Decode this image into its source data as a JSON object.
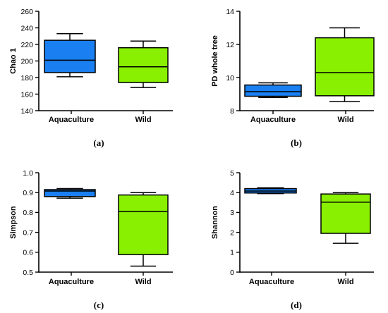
{
  "chart_data": [
    {
      "type": "box",
      "panel_label": "(a)",
      "ylabel": "Chao 1",
      "ylim": [
        140,
        260
      ],
      "yticks": [
        "140",
        "160",
        "180",
        "200",
        "220",
        "240",
        "260"
      ],
      "categories": [
        "Aquaculture",
        "Wild"
      ],
      "boxes": [
        {
          "category": "Aquaculture",
          "min": 181,
          "q1": 186,
          "median": 201,
          "q3": 225,
          "max": 233,
          "color": "#1a7ff0"
        },
        {
          "category": "Wild",
          "min": 168,
          "q1": 174,
          "median": 193,
          "q3": 216,
          "max": 224,
          "color": "#88f000"
        }
      ]
    },
    {
      "type": "box",
      "panel_label": "(b)",
      "ylabel": "PD whole tree",
      "ylim": [
        8,
        14
      ],
      "yticks": [
        "8",
        "10",
        "12",
        "14"
      ],
      "categories": [
        "Aquaculture",
        "Wild"
      ],
      "boxes": [
        {
          "category": "Aquaculture",
          "min": 8.8,
          "q1": 8.87,
          "median": 9.15,
          "q3": 9.55,
          "max": 9.68,
          "color": "#1a7ff0"
        },
        {
          "category": "Wild",
          "min": 8.55,
          "q1": 8.9,
          "median": 10.3,
          "q3": 12.4,
          "max": 13.0,
          "color": "#88f000"
        }
      ]
    },
    {
      "type": "box",
      "panel_label": "(c)",
      "ylabel": "Simpson",
      "ylim": [
        0.5,
        1.0
      ],
      "yticks": [
        "0.5",
        "0.6",
        "0.7",
        "0.8",
        "0.9",
        "1.0"
      ],
      "categories": [
        "Aquaculture",
        "Wild"
      ],
      "boxes": [
        {
          "category": "Aquaculture",
          "min": 0.872,
          "q1": 0.88,
          "median": 0.908,
          "q3": 0.915,
          "max": 0.92,
          "color": "#1a7ff0"
        },
        {
          "category": "Wild",
          "min": 0.53,
          "q1": 0.588,
          "median": 0.805,
          "q3": 0.888,
          "max": 0.9,
          "color": "#88f000"
        }
      ]
    },
    {
      "type": "box",
      "panel_label": "(d)",
      "ylabel": "Shannon",
      "ylim": [
        0,
        5
      ],
      "yticks": [
        "0",
        "1",
        "2",
        "3",
        "4",
        "5"
      ],
      "categories": [
        "Aquaculture",
        "Wild"
      ],
      "boxes": [
        {
          "category": "Aquaculture",
          "min": 3.95,
          "q1": 3.98,
          "median": 4.08,
          "q3": 4.2,
          "max": 4.24,
          "color": "#1a7ff0"
        },
        {
          "category": "Wild",
          "min": 1.45,
          "q1": 1.95,
          "median": 3.52,
          "q3": 3.93,
          "max": 4.0,
          "color": "#88f000"
        }
      ]
    }
  ]
}
